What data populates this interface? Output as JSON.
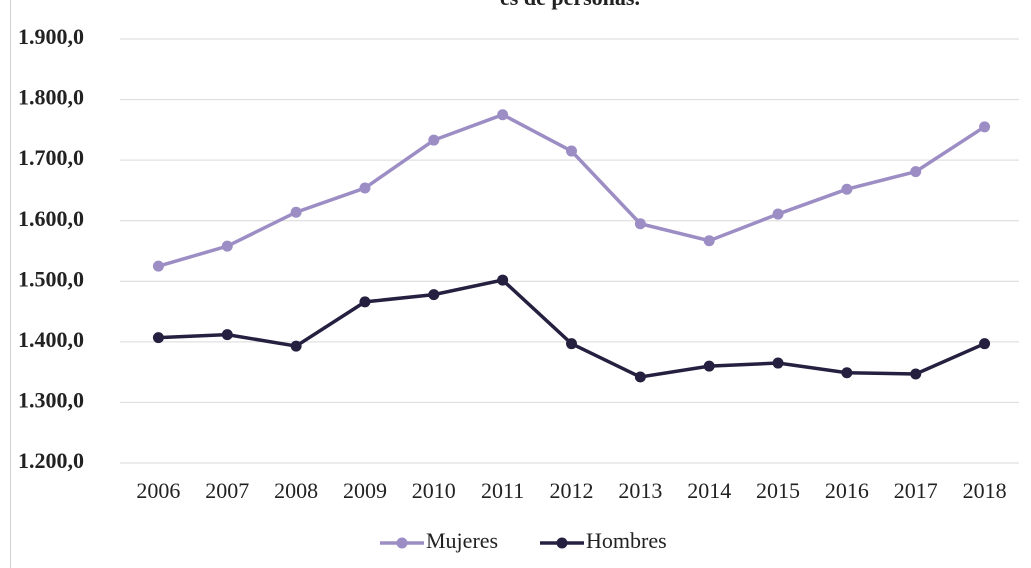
{
  "chart_data": {
    "type": "line",
    "title": "es de personas.",
    "categories": [
      "2006",
      "2007",
      "2008",
      "2009",
      "2010",
      "2011",
      "2012",
      "2013",
      "2014",
      "2015",
      "2016",
      "2017",
      "2018"
    ],
    "series": [
      {
        "name": "Mujeres",
        "color": "#9c8dc4",
        "values": [
          1525,
          1558,
          1614,
          1654,
          1733,
          1775,
          1715,
          1595,
          1567,
          1611,
          1652,
          1681,
          1755
        ]
      },
      {
        "name": "Hombres",
        "color": "#262040",
        "values": [
          1407,
          1412,
          1393,
          1466,
          1478,
          1502,
          1397,
          1342,
          1360,
          1365,
          1349,
          1347,
          1397
        ]
      }
    ],
    "ylim": [
      1200,
      1900
    ],
    "yticks": [
      {
        "value": 1200,
        "label": "1.200,0"
      },
      {
        "value": 1300,
        "label": "1.300,0"
      },
      {
        "value": 1400,
        "label": "1.400,0"
      },
      {
        "value": 1500,
        "label": "1.500,0"
      },
      {
        "value": 1600,
        "label": "1.600,0"
      },
      {
        "value": 1700,
        "label": "1.700,0"
      },
      {
        "value": 1800,
        "label": "1.800,0"
      },
      {
        "value": 1900,
        "label": "1.900,0"
      }
    ],
    "grid": true,
    "legend": "bottom"
  }
}
